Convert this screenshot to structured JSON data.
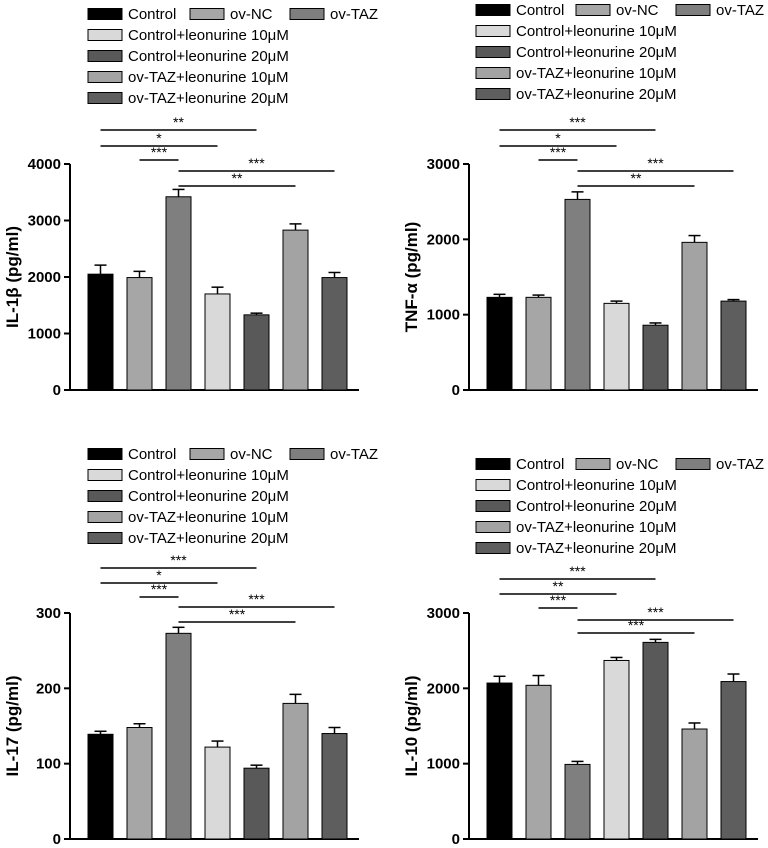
{
  "groups": [
    "Control",
    "ov-NC",
    "ov-TAZ",
    "Control+leonurine 10μM",
    "Control+leonurine 20μM",
    "ov-TAZ+leonurine 10μM",
    "ov-TAZ+leonurine 20μM"
  ],
  "colors": [
    "#000000",
    "#a6a6a6",
    "#7f7f7f",
    "#d9d9d9",
    "#595959",
    "#a3a3a3",
    "#5e5e5e"
  ],
  "chart_data": [
    {
      "type": "bar",
      "ylabel": "IL-1β (pg/ml)",
      "ylim": [
        0,
        4000
      ],
      "yticks": [
        "0",
        "1000",
        "2000",
        "3000",
        "4000"
      ],
      "values": [
        2050,
        1990,
        3420,
        1700,
        1330,
        2830,
        1990
      ],
      "errors": [
        160,
        110,
        130,
        120,
        30,
        110,
        90
      ],
      "significance": [
        {
          "from": 0,
          "to": 4,
          "label": "**"
        },
        {
          "from": 0,
          "to": 3,
          "label": "*"
        },
        {
          "from": 1,
          "to": 2,
          "label": "***"
        },
        {
          "from": 2,
          "to": 6,
          "label": "***"
        },
        {
          "from": 2,
          "to": 5,
          "label": "**"
        }
      ]
    },
    {
      "type": "bar",
      "ylabel": "TNF-α (pg/ml)",
      "ylim": [
        0,
        3000
      ],
      "yticks": [
        "0",
        "1000",
        "2000",
        "3000"
      ],
      "values": [
        1230,
        1230,
        2530,
        1150,
        860,
        1960,
        1180
      ],
      "errors": [
        40,
        30,
        100,
        30,
        30,
        90,
        20
      ],
      "significance": [
        {
          "from": 0,
          "to": 4,
          "label": "***"
        },
        {
          "from": 0,
          "to": 3,
          "label": "*"
        },
        {
          "from": 1,
          "to": 2,
          "label": "***"
        },
        {
          "from": 2,
          "to": 6,
          "label": "***"
        },
        {
          "from": 2,
          "to": 5,
          "label": "**"
        }
      ]
    },
    {
      "type": "bar",
      "ylabel": "IL-17 (pg/ml)",
      "ylim": [
        0,
        300
      ],
      "yticks": [
        "0",
        "100",
        "200",
        "300"
      ],
      "values": [
        139,
        148,
        273,
        122,
        94,
        180,
        140
      ],
      "errors": [
        4,
        5,
        8,
        8,
        4,
        12,
        8
      ],
      "significance": [
        {
          "from": 0,
          "to": 4,
          "label": "***"
        },
        {
          "from": 0,
          "to": 3,
          "label": "*"
        },
        {
          "from": 1,
          "to": 2,
          "label": "***"
        },
        {
          "from": 2,
          "to": 6,
          "label": "***"
        },
        {
          "from": 2,
          "to": 5,
          "label": "***"
        }
      ]
    },
    {
      "type": "bar",
      "ylabel": "IL-10 (pg/ml)",
      "ylim": [
        0,
        3000
      ],
      "yticks": [
        "0",
        "1000",
        "2000",
        "3000"
      ],
      "values": [
        2070,
        2040,
        990,
        2370,
        2610,
        1460,
        2090
      ],
      "errors": [
        90,
        130,
        40,
        40,
        40,
        80,
        100
      ],
      "significance": [
        {
          "from": 0,
          "to": 4,
          "label": "***"
        },
        {
          "from": 0,
          "to": 3,
          "label": "**"
        },
        {
          "from": 1,
          "to": 2,
          "label": "***"
        },
        {
          "from": 2,
          "to": 6,
          "label": "***"
        },
        {
          "from": 2,
          "to": 5,
          "label": "***"
        }
      ]
    }
  ]
}
